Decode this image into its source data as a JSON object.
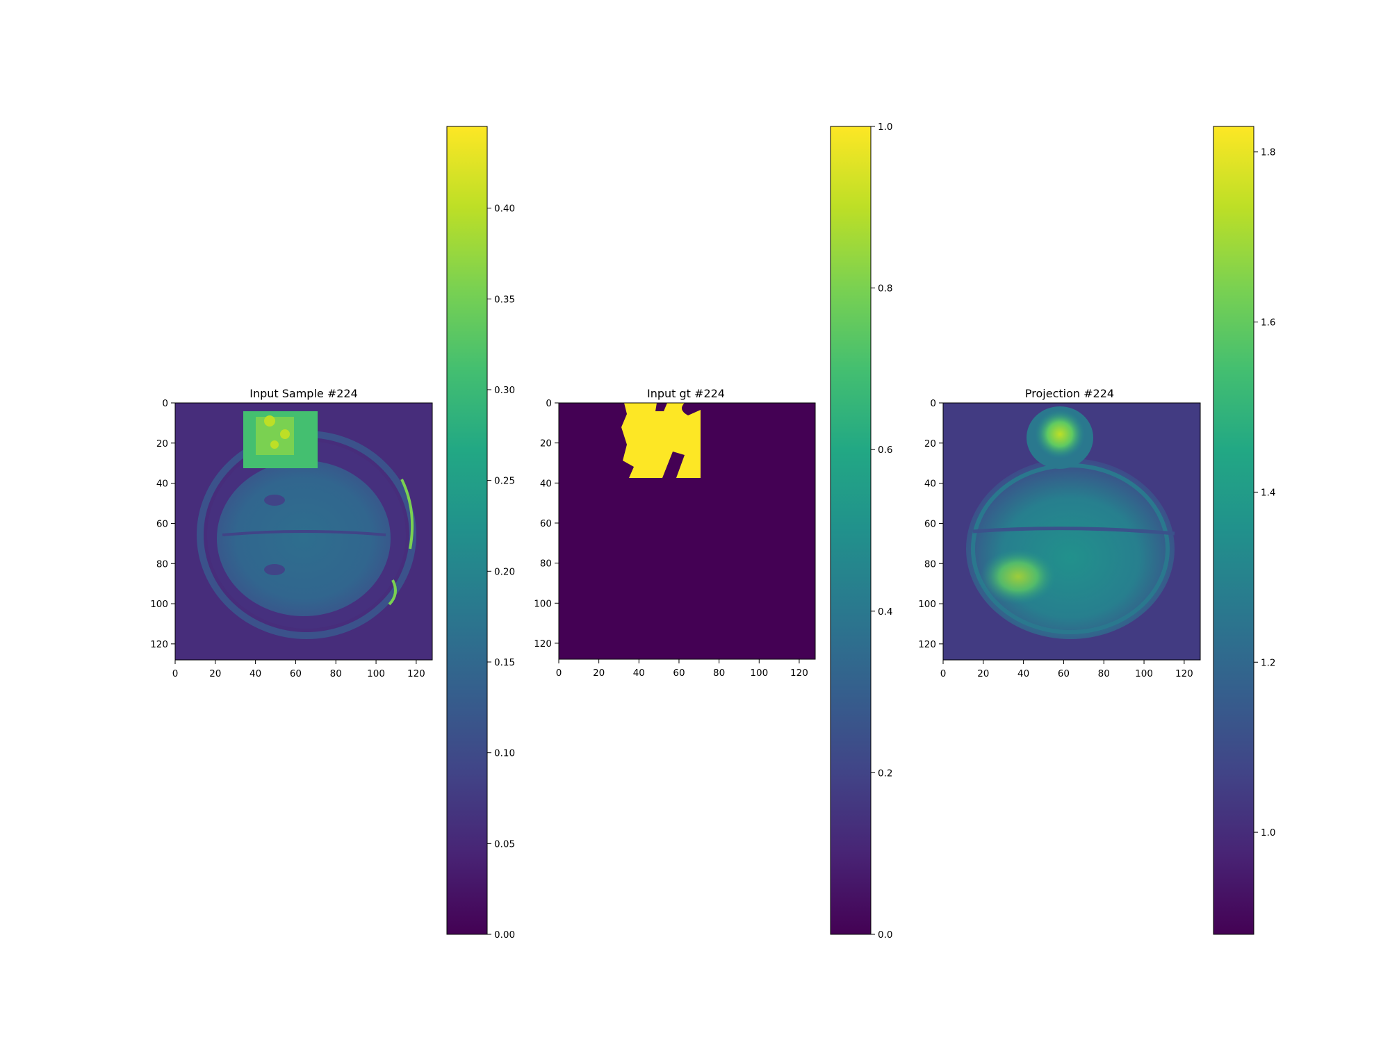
{
  "chart_data": [
    {
      "type": "heatmap",
      "title": "Input Sample #224",
      "x_ticks": [
        "0",
        "20",
        "40",
        "60",
        "80",
        "100",
        "120"
      ],
      "y_ticks": [
        "0",
        "20",
        "40",
        "60",
        "80",
        "100",
        "120"
      ],
      "xlim": [
        0,
        128
      ],
      "ylim": [
        128,
        0
      ],
      "colormap": "viridis",
      "colorbar": {
        "range": [
          0.0,
          0.445
        ],
        "ticks": [
          0.0,
          0.05,
          0.1,
          0.15,
          0.2,
          0.25,
          0.3,
          0.35,
          0.4
        ],
        "tick_labels": [
          "0.00",
          "0.05",
          "0.10",
          "0.15",
          "0.20",
          "0.25",
          "0.30",
          "0.35",
          "0.40"
        ]
      },
      "image": "brain MRI slice (axial) with bright rectangular patch at top-center (x≈34–70, y≈10–37)"
    },
    {
      "type": "heatmap",
      "title": "Input gt #224",
      "x_ticks": [
        "0",
        "20",
        "40",
        "60",
        "80",
        "100",
        "120"
      ],
      "y_ticks": [
        "0",
        "20",
        "40",
        "60",
        "80",
        "100",
        "120"
      ],
      "xlim": [
        0,
        128
      ],
      "ylim": [
        128,
        0
      ],
      "colormap": "viridis",
      "colorbar": {
        "range": [
          0.0,
          1.0
        ],
        "ticks": [
          0.0,
          0.2,
          0.4,
          0.6,
          0.8,
          1.0
        ],
        "tick_labels": [
          "0.0",
          "0.2",
          "0.4",
          "0.6",
          "0.8",
          "1.0"
        ]
      },
      "image": "binary mask: value 1 region at x≈32–70, y≈0–37; all else 0"
    },
    {
      "type": "heatmap",
      "title": "Projection #224",
      "x_ticks": [
        "0",
        "20",
        "40",
        "60",
        "80",
        "100",
        "120"
      ],
      "y_ticks": [
        "0",
        "20",
        "40",
        "60",
        "80",
        "100",
        "120"
      ],
      "xlim": [
        0,
        128
      ],
      "ylim": [
        128,
        0
      ],
      "colormap": "viridis",
      "colorbar": {
        "range": [
          0.88,
          1.83
        ],
        "ticks": [
          1.0,
          1.2,
          1.4,
          1.6,
          1.8
        ],
        "tick_labels": [
          "1.0",
          "1.2",
          "1.4",
          "1.6",
          "1.8"
        ]
      },
      "image": "blurred projection of brain slice, bright spot near top-center and lower-left"
    }
  ]
}
